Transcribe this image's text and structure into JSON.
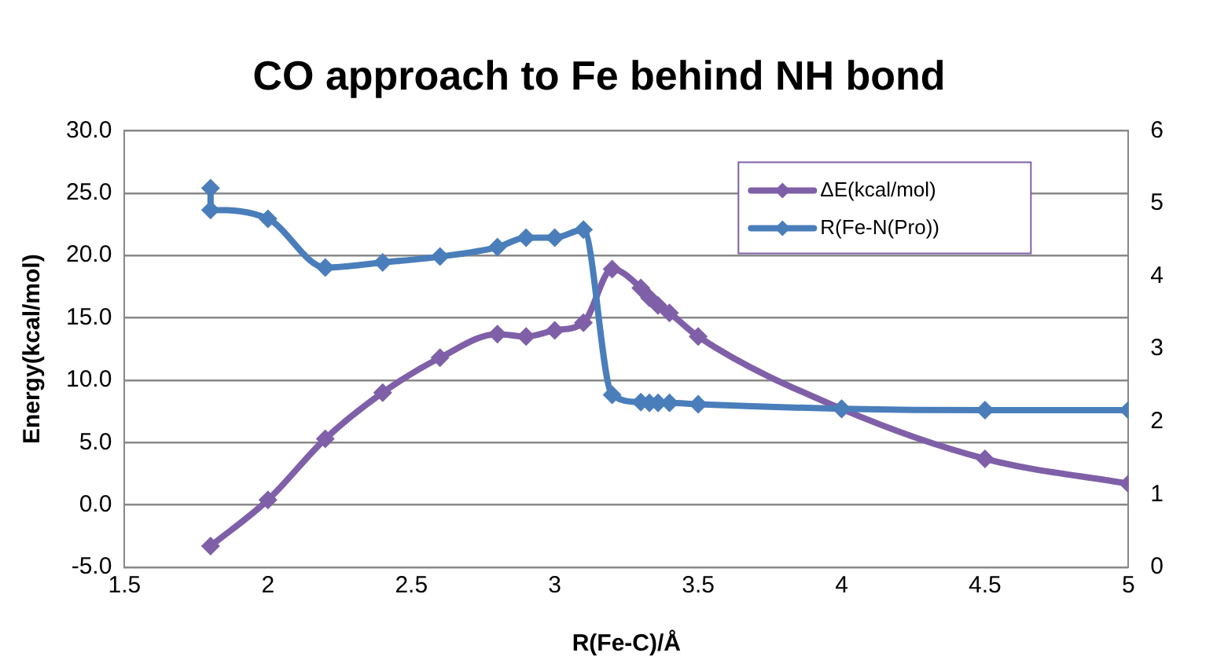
{
  "chart_data": {
    "type": "line",
    "title": "CO approach to Fe behind NH bond",
    "xlabel": "R(Fe-C)/Å",
    "ylabel": "Energy(kcal/mol)",
    "xlim": [
      1.5,
      5
    ],
    "xticks": [
      1.5,
      2,
      2.5,
      3,
      3.5,
      4,
      4.5,
      5
    ],
    "ylim": [
      -5,
      30
    ],
    "yticks": [
      {
        "value": -5,
        "label": "-5.0"
      },
      {
        "value": 0,
        "label": "0.0"
      },
      {
        "value": 5,
        "label": "5.0"
      },
      {
        "value": 10,
        "label": "10.0"
      },
      {
        "value": 15,
        "label": "15.0"
      },
      {
        "value": 20,
        "label": "20.0"
      },
      {
        "value": 25,
        "label": "25.0"
      },
      {
        "value": 30,
        "label": "30.0"
      }
    ],
    "y2lim": [
      0,
      6
    ],
    "y2ticks": [
      0,
      1,
      2,
      3,
      4,
      5,
      6
    ],
    "grid": "y",
    "legend": "top right",
    "marker": "diamond",
    "line_style": "solid",
    "series": [
      {
        "name": "ΔE(kcal/mol)",
        "color": "#7f60a8",
        "x": [
          1.8,
          2.0,
          2.2,
          2.4,
          2.6,
          2.8,
          2.9,
          3.0,
          3.1,
          3.2,
          3.3,
          3.33,
          3.36,
          3.4,
          3.5,
          4.0,
          4.5,
          5.0
        ],
        "values": [
          -3.3,
          0.4,
          5.3,
          9.0,
          11.8,
          13.7,
          13.5,
          14.0,
          14.6,
          18.9,
          17.4,
          16.6,
          16.0,
          15.4,
          13.5,
          7.7,
          3.7,
          1.7
        ]
      },
      {
        "name": "R(Fe-N(Pro))",
        "color": "#4a7ebb",
        "axis": "y2",
        "x": [
          1.8,
          1.8,
          2.0,
          2.2,
          2.4,
          2.6,
          2.8,
          2.9,
          3.0,
          3.1,
          3.2,
          3.3,
          3.33,
          3.36,
          3.4,
          3.5,
          4.0,
          4.5,
          5.0
        ],
        "values": [
          5.21,
          4.91,
          4.79,
          4.12,
          4.19,
          4.27,
          4.4,
          4.53,
          4.53,
          4.64,
          2.37,
          2.27,
          2.26,
          2.26,
          2.26,
          2.24,
          2.18,
          2.16,
          2.16
        ]
      }
    ]
  }
}
